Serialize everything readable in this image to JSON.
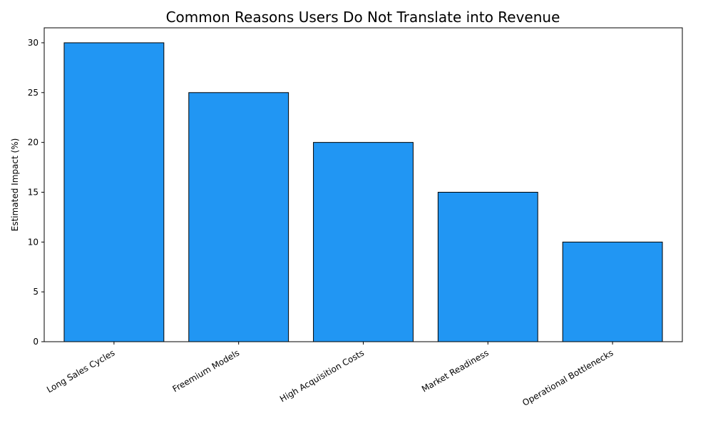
{
  "chart_data": {
    "type": "bar",
    "title": "Common Reasons Users Do Not Translate into Revenue",
    "y_label": "Estimated Impact (%)",
    "categories": [
      "Long Sales Cycles",
      "Freemium Models",
      "High Acquisition Costs",
      "Market Readiness",
      "Operational Bottlenecks"
    ],
    "values": [
      30,
      25,
      20,
      15,
      10
    ],
    "color": "#2196f3",
    "edgecolor": "#000000",
    "ylim": [
      0,
      31.5
    ],
    "yticks": [
      0,
      5,
      10,
      15,
      20,
      25,
      30
    ],
    "grid": false
  }
}
